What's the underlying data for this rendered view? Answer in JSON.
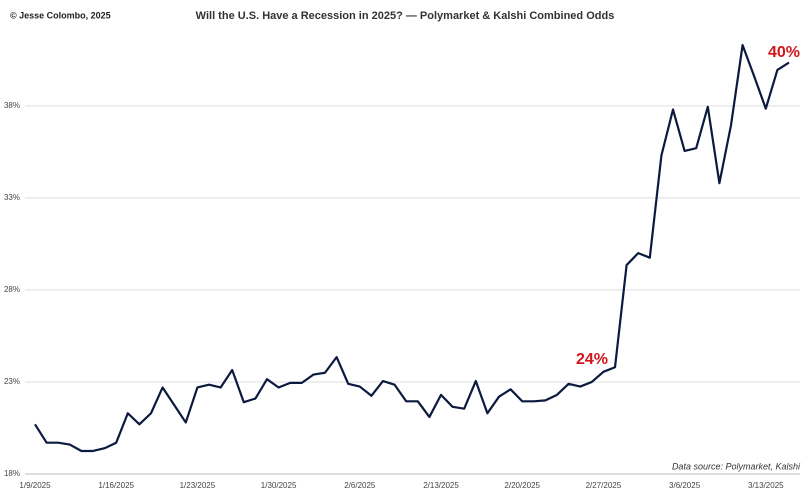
{
  "chart_data": {
    "type": "line",
    "title": "Will the U.S. Have a Recession in 2025? — Polymarket & Kalshi Combined Odds",
    "credit": "© Jesse Colombo, 2025",
    "source": "Data source: Polymarket, Kalshi",
    "annotations": [
      "24%",
      "40%"
    ],
    "annotation_color": "#d0161b",
    "categories": [
      "1/9/2025",
      null,
      null,
      null,
      null,
      null,
      null,
      "1/16/2025",
      null,
      null,
      null,
      null,
      null,
      null,
      "1/23/2025",
      null,
      null,
      null,
      null,
      null,
      null,
      "1/30/2025",
      null,
      null,
      null,
      null,
      null,
      null,
      "2/6/2025",
      null,
      null,
      null,
      null,
      null,
      null,
      "2/13/2025",
      null,
      null,
      null,
      null,
      null,
      null,
      "2/20/2025",
      null,
      null,
      null,
      null,
      null,
      null,
      "2/27/2025",
      null,
      null,
      null,
      null,
      null,
      null,
      "3/6/2025",
      null,
      null,
      null,
      null,
      null,
      null,
      "3/13/2025",
      null,
      null
    ],
    "series": [
      {
        "color": "#0d1a3f",
        "values": [
          20.7,
          19.7,
          19.7,
          19.6,
          19.25,
          19.25,
          19.4,
          19.7,
          21.3,
          20.7,
          21.3,
          22.7,
          21.75,
          20.8,
          22.7,
          22.85,
          22.7,
          23.65,
          21.9,
          22.1,
          23.15,
          22.7,
          22.95,
          22.95,
          23.4,
          23.5,
          24.35,
          22.9,
          22.75,
          22.25,
          23.05,
          22.85,
          21.95,
          21.95,
          21.1,
          22.3,
          21.65,
          21.55,
          23.05,
          21.3,
          22.2,
          22.6,
          21.95,
          21.95,
          22.0,
          22.3,
          22.9,
          22.75,
          23.0,
          23.55,
          23.8,
          29.35,
          30.0,
          29.75,
          35.3,
          37.8,
          35.55,
          35.7,
          37.95,
          33.8,
          36.95,
          41.3,
          39.6,
          37.85,
          39.95,
          40.35
        ]
      }
    ],
    "ylim": [
      18,
      42.5
    ],
    "yticks": [
      {
        "value": 18,
        "label": "18%"
      },
      {
        "value": 23,
        "label": "23%"
      },
      {
        "value": 28,
        "label": "28%"
      },
      {
        "value": 33,
        "label": "33%"
      },
      {
        "value": 38,
        "label": "38%"
      }
    ],
    "grid": true
  }
}
